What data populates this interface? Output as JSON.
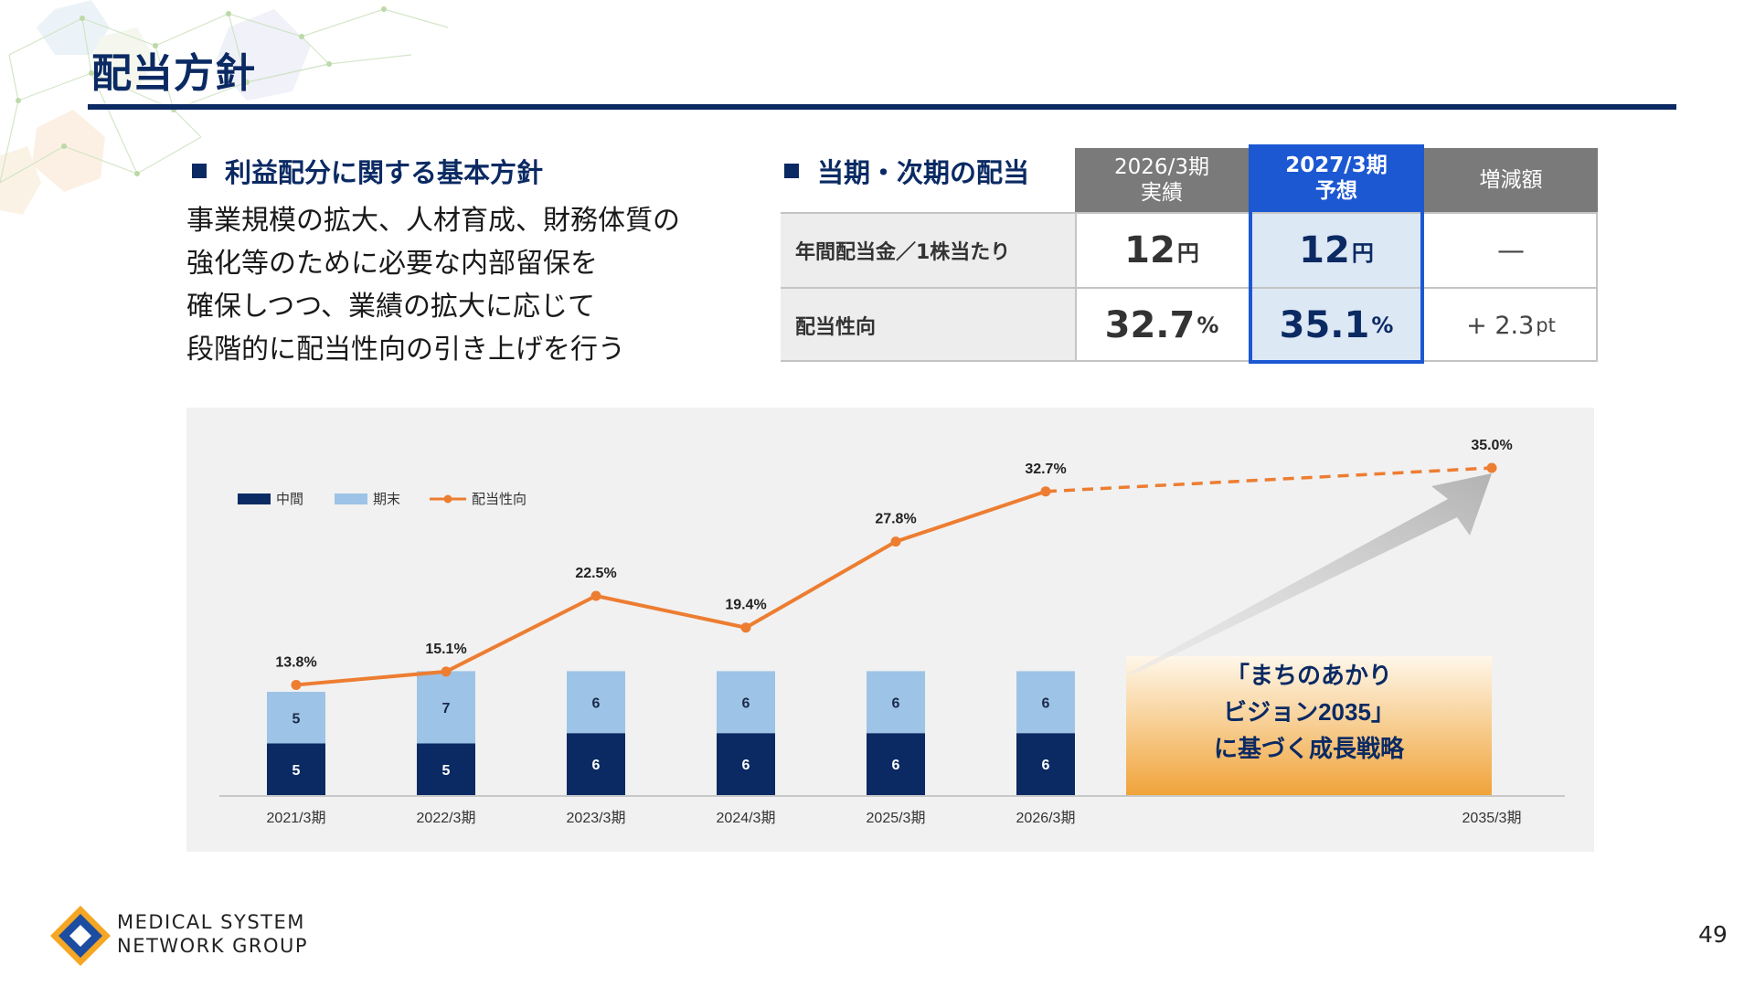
{
  "page": {
    "title": "配当方針",
    "page_number": "49"
  },
  "policy": {
    "heading": "利益配分に関する基本方針",
    "lines": [
      "事業規模の拡大、人材育成、財務体質の",
      "強化等のために必要な内部留保を",
      "確保しつつ、業績の拡大に応じて",
      "段階的に配当性向の引き上げを行う"
    ]
  },
  "dividend_table": {
    "heading": "当期・次期の配当",
    "columns": [
      {
        "line1": "2026/3期",
        "line2": "実績"
      },
      {
        "line1": "2027/3期",
        "line2": "予想"
      },
      {
        "line1": "増減額",
        "line2": ""
      }
    ],
    "rows": [
      {
        "label": "年間配当金／1株当たり",
        "actual": "12",
        "actual_unit": "円",
        "forecast": "12",
        "forecast_unit": "円",
        "change": "—",
        "change_unit": ""
      },
      {
        "label": "配当性向",
        "actual": "32.7",
        "actual_unit": "%",
        "forecast": "35.1",
        "forecast_unit": "%",
        "change": "+ 2.3",
        "change_unit": "pt"
      }
    ],
    "highlight_color": "#1c58d2"
  },
  "chart_data": {
    "type": "bar",
    "subtype": "stacked bar with line overlay",
    "categories": [
      "2021/3期",
      "2022/3期",
      "2023/3期",
      "2024/3期",
      "2025/3期",
      "2026/3期",
      "2035/3期"
    ],
    "series": [
      {
        "name": "中間",
        "type": "bar",
        "color": "#0b2a63",
        "values": [
          5,
          5,
          6,
          6,
          6,
          6,
          null
        ]
      },
      {
        "name": "期末",
        "type": "bar",
        "color": "#9dc3e6",
        "values": [
          5,
          7,
          6,
          6,
          6,
          6,
          null
        ]
      },
      {
        "name": "配当性向",
        "type": "line",
        "color": "#ed7d31",
        "values": [
          13.8,
          15.1,
          22.5,
          19.4,
          27.8,
          32.7,
          35.0
        ],
        "labels": [
          "13.8%",
          "15.1%",
          "22.5%",
          "19.4%",
          "27.8%",
          "32.7%",
          "35.0%"
        ],
        "dashed_from_index": 5
      }
    ],
    "legend": "top-left",
    "grid": false,
    "arrow_annotation": [
      "「まちのあかり",
      "ビジョン2035」",
      "に基づく成長戦略"
    ]
  },
  "footer": {
    "company_line1": "MEDICAL SYSTEM",
    "company_line2": "NETWORK GROUP"
  }
}
